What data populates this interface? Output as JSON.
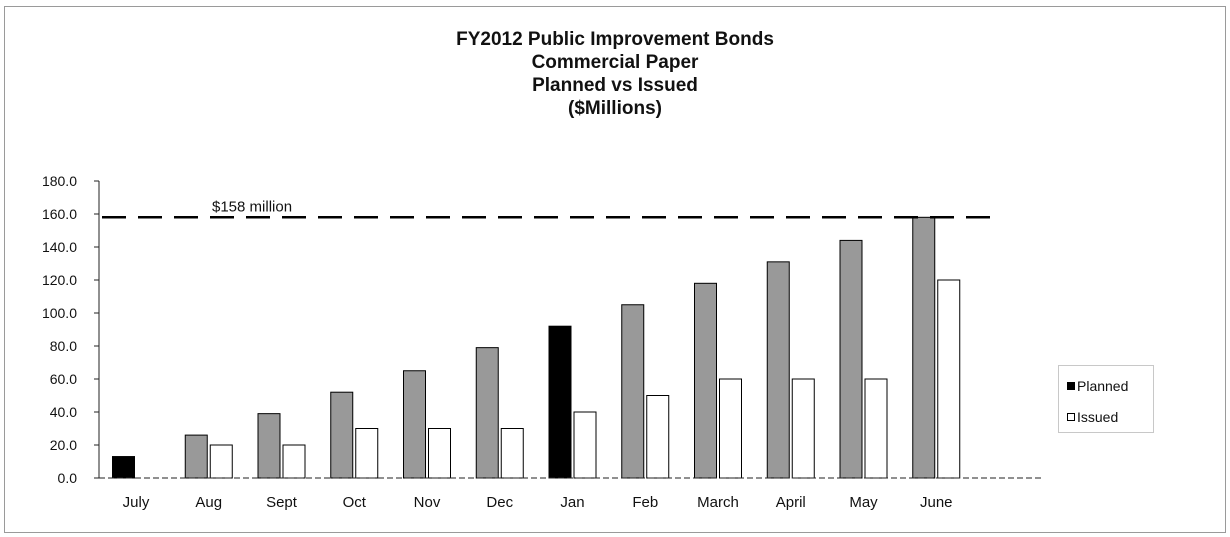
{
  "chart_data": {
    "type": "bar",
    "title": [
      "FY2012 Public Improvement Bonds",
      "Commercial Paper",
      "Planned vs Issued",
      "($Millions)"
    ],
    "categories": [
      "July",
      "Aug",
      "Sept",
      "Oct",
      "Nov",
      "Dec",
      "Jan",
      "Feb",
      "March",
      "April",
      "May",
      "June"
    ],
    "series": [
      {
        "name": "Planned",
        "values": [
          13,
          26,
          39,
          52,
          65,
          79,
          92,
          105,
          118,
          131,
          144,
          158
        ],
        "color": "#999999"
      },
      {
        "name": "Issued",
        "values": [
          0,
          20,
          20,
          30,
          30,
          30,
          40,
          50,
          60,
          60,
          60,
          120
        ],
        "color": "#ffffff"
      }
    ],
    "highlight_colors": {
      "July": "#000000",
      "Jan": "#000000"
    },
    "legend_swatch_colors": {
      "Planned": "#000000",
      "Issued": "#ffffff"
    },
    "ylim": [
      0,
      180
    ],
    "yticks": [
      "0.0",
      "20.0",
      "40.0",
      "60.0",
      "80.0",
      "100.0",
      "120.0",
      "140.0",
      "160.0",
      "180.0"
    ],
    "reference_line": {
      "value": 158,
      "label": "$158 million",
      "style": "dashed"
    },
    "legend_position": "right",
    "grid": false
  }
}
